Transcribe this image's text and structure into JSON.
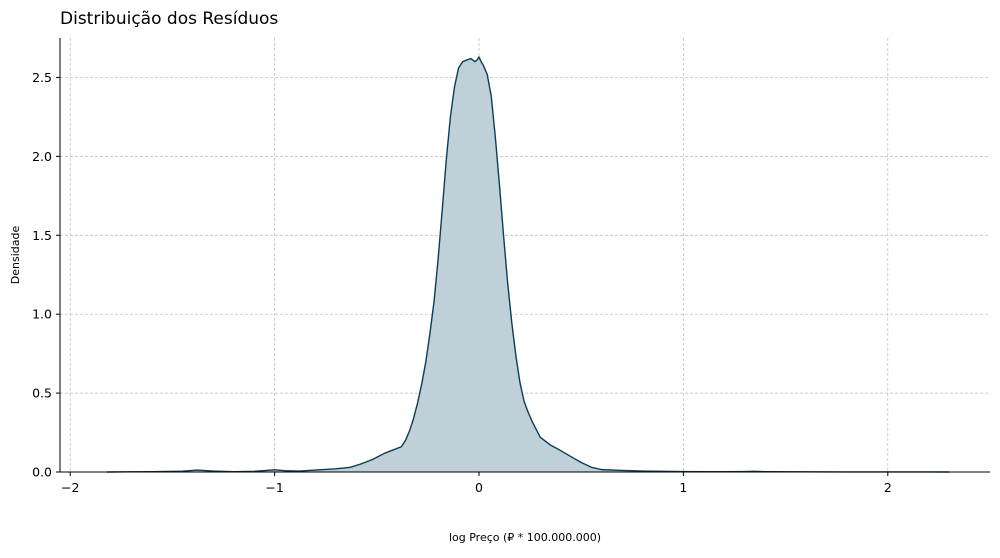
{
  "chart_data": {
    "type": "area",
    "title": "Distribuição dos Resíduos",
    "xlabel": "log Preço (₽ * 100.000.000)",
    "ylabel": "Densidade",
    "xlim": [
      -2.05,
      2.5
    ],
    "ylim": [
      0,
      2.75
    ],
    "xticks": [
      -2,
      -1,
      0,
      1,
      2
    ],
    "xtick_labels": [
      "−2",
      "−1",
      "0",
      "1",
      "2"
    ],
    "yticks": [
      0.0,
      0.5,
      1.0,
      1.5,
      2.0,
      2.5
    ],
    "ytick_labels": [
      "0.0",
      "0.5",
      "1.0",
      "1.5",
      "2.0",
      "2.5"
    ],
    "grid": true,
    "series": [
      {
        "kind": "kde",
        "color": "#0b3d56",
        "fill": "#bccdd6",
        "x": [
          -1.82,
          -1.6,
          -1.45,
          -1.38,
          -1.3,
          -1.2,
          -1.1,
          -1.0,
          -0.95,
          -0.88,
          -0.8,
          -0.7,
          -0.63,
          -0.58,
          -0.52,
          -0.46,
          -0.42,
          -0.38,
          -0.36,
          -0.34,
          -0.32,
          -0.3,
          -0.28,
          -0.26,
          -0.24,
          -0.22,
          -0.2,
          -0.18,
          -0.16,
          -0.14,
          -0.12,
          -0.1,
          -0.08,
          -0.06,
          -0.04,
          -0.02,
          -0.01,
          0.0,
          0.01,
          0.02,
          0.04,
          0.06,
          0.08,
          0.1,
          0.12,
          0.14,
          0.16,
          0.18,
          0.2,
          0.22,
          0.24,
          0.26,
          0.28,
          0.3,
          0.32,
          0.35,
          0.38,
          0.42,
          0.46,
          0.5,
          0.55,
          0.6,
          0.7,
          0.8,
          0.9,
          1.0,
          1.1,
          1.2,
          1.3,
          1.34,
          1.4,
          1.6,
          1.8,
          2.0,
          2.2,
          2.3
        ],
        "y": [
          0.0,
          0.002,
          0.005,
          0.012,
          0.006,
          0.002,
          0.004,
          0.014,
          0.008,
          0.006,
          0.012,
          0.02,
          0.03,
          0.05,
          0.08,
          0.12,
          0.14,
          0.16,
          0.2,
          0.26,
          0.34,
          0.44,
          0.56,
          0.7,
          0.88,
          1.08,
          1.35,
          1.66,
          1.98,
          2.25,
          2.44,
          2.56,
          2.6,
          2.61,
          2.62,
          2.6,
          2.61,
          2.63,
          2.6,
          2.58,
          2.52,
          2.38,
          2.12,
          1.82,
          1.5,
          1.2,
          0.95,
          0.74,
          0.57,
          0.45,
          0.38,
          0.32,
          0.27,
          0.22,
          0.2,
          0.17,
          0.15,
          0.12,
          0.09,
          0.06,
          0.03,
          0.015,
          0.01,
          0.006,
          0.004,
          0.003,
          0.002,
          0.002,
          0.003,
          0.004,
          0.002,
          0.001,
          0.0005,
          0.0003,
          0.0002,
          0.0
        ]
      }
    ]
  }
}
